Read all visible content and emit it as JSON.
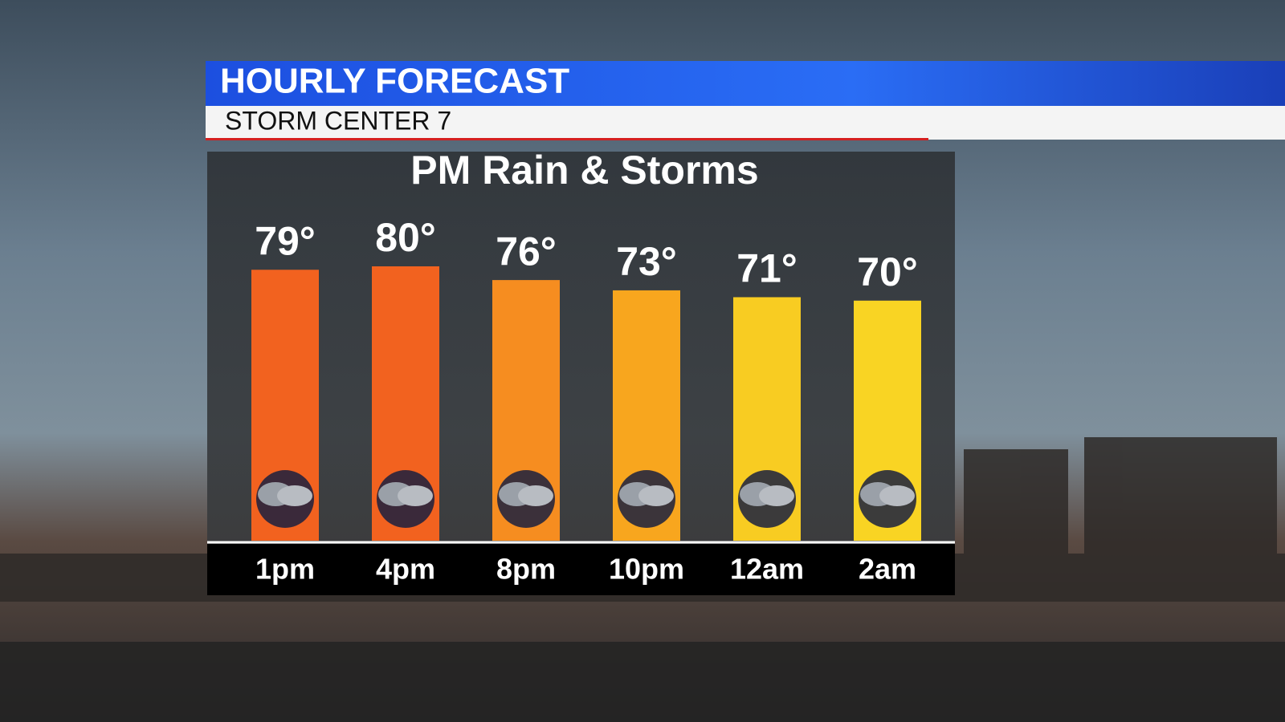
{
  "header": {
    "title": "HOURLY FORECAST",
    "subtitle": "STORM CENTER 7"
  },
  "chart_data": {
    "type": "bar",
    "title": "PM Rain & Storms",
    "categories": [
      "1pm",
      "4pm",
      "8pm",
      "10pm",
      "12am",
      "2am"
    ],
    "values": [
      79,
      80,
      76,
      73,
      71,
      70
    ],
    "value_labels": [
      "79°",
      "80°",
      "76°",
      "73°",
      "71°",
      "70°"
    ],
    "colors": [
      "#f2621f",
      "#f2621f",
      "#f68d20",
      "#f8a61e",
      "#f8cc22",
      "#f9d423"
    ]
  }
}
